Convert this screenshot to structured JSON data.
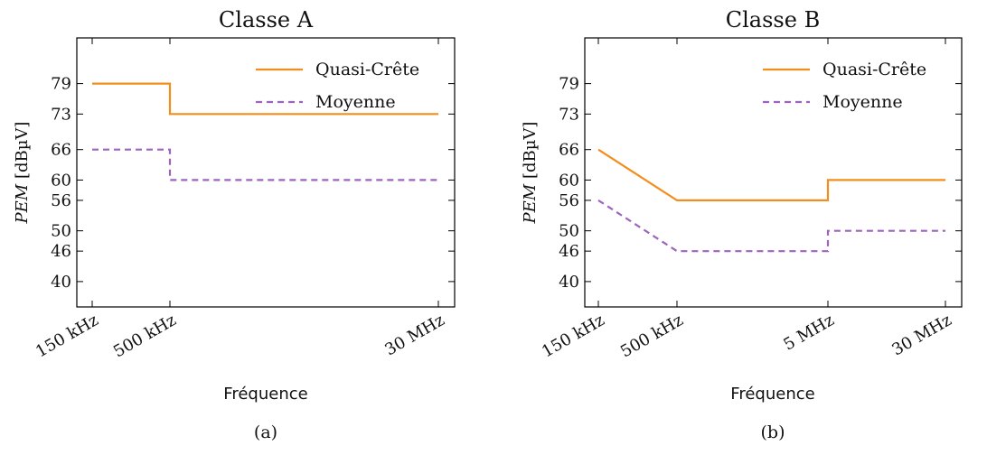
{
  "figure": {
    "ylabel_unit": "[dBµV]",
    "ylabel_var": "PEM",
    "colors": {
      "quasi": "#f28e1c",
      "moyenne": "#9e63bf",
      "axis": "#000000"
    }
  },
  "chart_data": [
    {
      "type": "line",
      "title": "Classe A",
      "caption": "(a)",
      "xlabel": "Fréquence",
      "ylabel": "PEM [dBµV]",
      "xscale": "log",
      "x_ticks": [
        0.15,
        0.5,
        30
      ],
      "x_tick_labels": [
        "150 kHz",
        "500 kHz",
        "30 MHz"
      ],
      "y_ticks": [
        40,
        46,
        50,
        56,
        60,
        66,
        73,
        79
      ],
      "ylim": [
        35,
        88
      ],
      "legend": "top-right",
      "series": [
        {
          "name": "Quasi-Crête",
          "style": "solid",
          "x": [
            0.15,
            0.5,
            0.5,
            30
          ],
          "y": [
            79,
            79,
            73,
            73
          ]
        },
        {
          "name": "Moyenne",
          "style": "dashed",
          "x": [
            0.15,
            0.5,
            0.5,
            30
          ],
          "y": [
            66,
            66,
            60,
            60
          ]
        }
      ]
    },
    {
      "type": "line",
      "title": "Classe B",
      "caption": "(b)",
      "xlabel": "Fréquence",
      "ylabel": "PEM [dBµV]",
      "xscale": "log",
      "x_ticks": [
        0.15,
        0.5,
        5,
        30
      ],
      "x_tick_labels": [
        "150 kHz",
        "500 kHz",
        "5 MHz",
        "30 MHz"
      ],
      "y_ticks": [
        40,
        46,
        50,
        56,
        60,
        66,
        73,
        79
      ],
      "ylim": [
        35,
        88
      ],
      "legend": "top-right",
      "series": [
        {
          "name": "Quasi-Crête",
          "style": "solid",
          "x": [
            0.15,
            0.5,
            5,
            5,
            30
          ],
          "y": [
            66,
            56,
            56,
            60,
            60
          ]
        },
        {
          "name": "Moyenne",
          "style": "dashed",
          "x": [
            0.15,
            0.5,
            5,
            5,
            30
          ],
          "y": [
            56,
            46,
            46,
            50,
            50
          ]
        }
      ]
    }
  ]
}
